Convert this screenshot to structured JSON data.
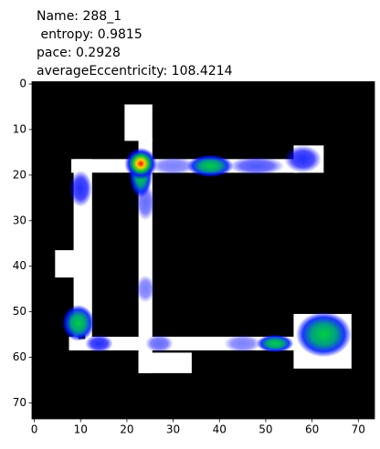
{
  "chart_data": {
    "type": "heatmap",
    "title": [
      "Name: 288_1",
      " entropy: 0.9815",
      "pace: 0.2928",
      "averageEccentricity: 108.4214"
    ],
    "xlim": [
      -0.5,
      73.5
    ],
    "ylim": [
      73.5,
      -0.5
    ],
    "xticks": [
      0,
      10,
      20,
      30,
      40,
      50,
      60,
      70
    ],
    "yticks": [
      0,
      10,
      20,
      30,
      40,
      50,
      60,
      70
    ]
  }
}
